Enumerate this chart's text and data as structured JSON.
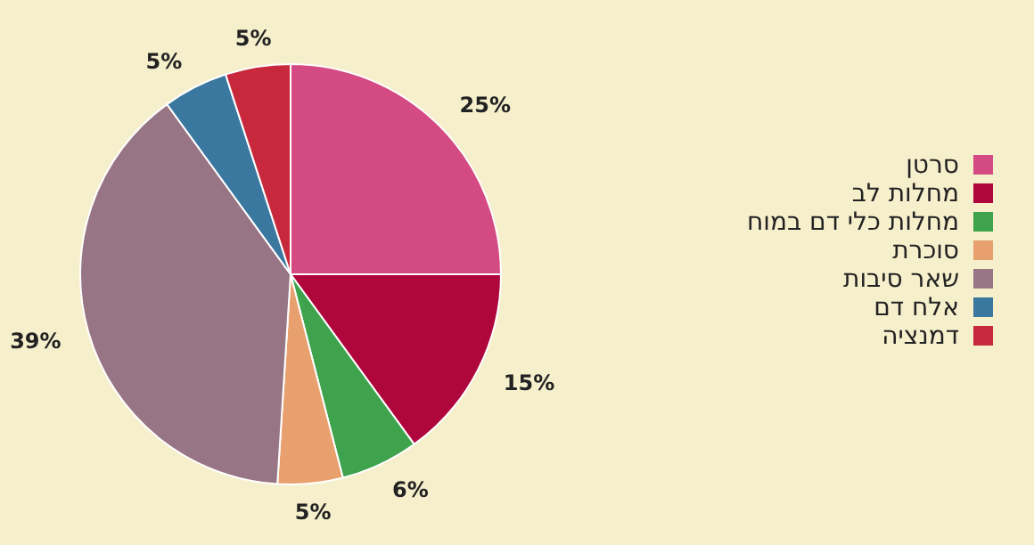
{
  "chart_data": {
    "type": "pie",
    "categories": [
      "סרטן",
      "מחלות לב",
      "מחלות כלי דם במוח",
      "סוכרת",
      "שאר סיבות",
      "אלח דם",
      "דמנציה"
    ],
    "values": [
      25,
      15,
      6,
      5,
      39,
      5,
      5
    ],
    "colors": [
      "#d44a82",
      "#b0063e",
      "#3fa34d",
      "#e8a06e",
      "#987584",
      "#3a78a0",
      "#c8283c"
    ],
    "value_labels": [
      "25%",
      "15%",
      "6%",
      "5%",
      "39%",
      "5%",
      "5%"
    ],
    "legend": "right"
  }
}
